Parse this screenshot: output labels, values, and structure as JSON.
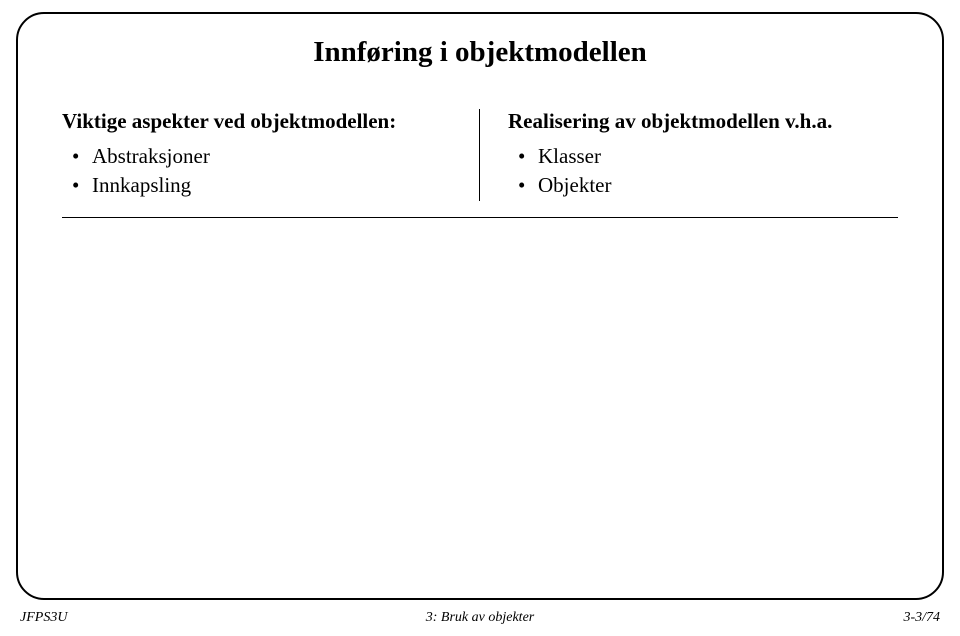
{
  "slide": {
    "title": "Innføring i objektmodellen",
    "left": {
      "heading": "Viktige aspekter ved objektmodellen:",
      "items": [
        "Abstraksjoner",
        "Innkapsling"
      ]
    },
    "right": {
      "heading": "Realisering av objektmodellen v.h.a.",
      "items": [
        "Klasser",
        "Objekter"
      ]
    }
  },
  "footer": {
    "left": "JFPS3U",
    "center": "3: Bruk av objekter",
    "right": "3-3/74"
  }
}
